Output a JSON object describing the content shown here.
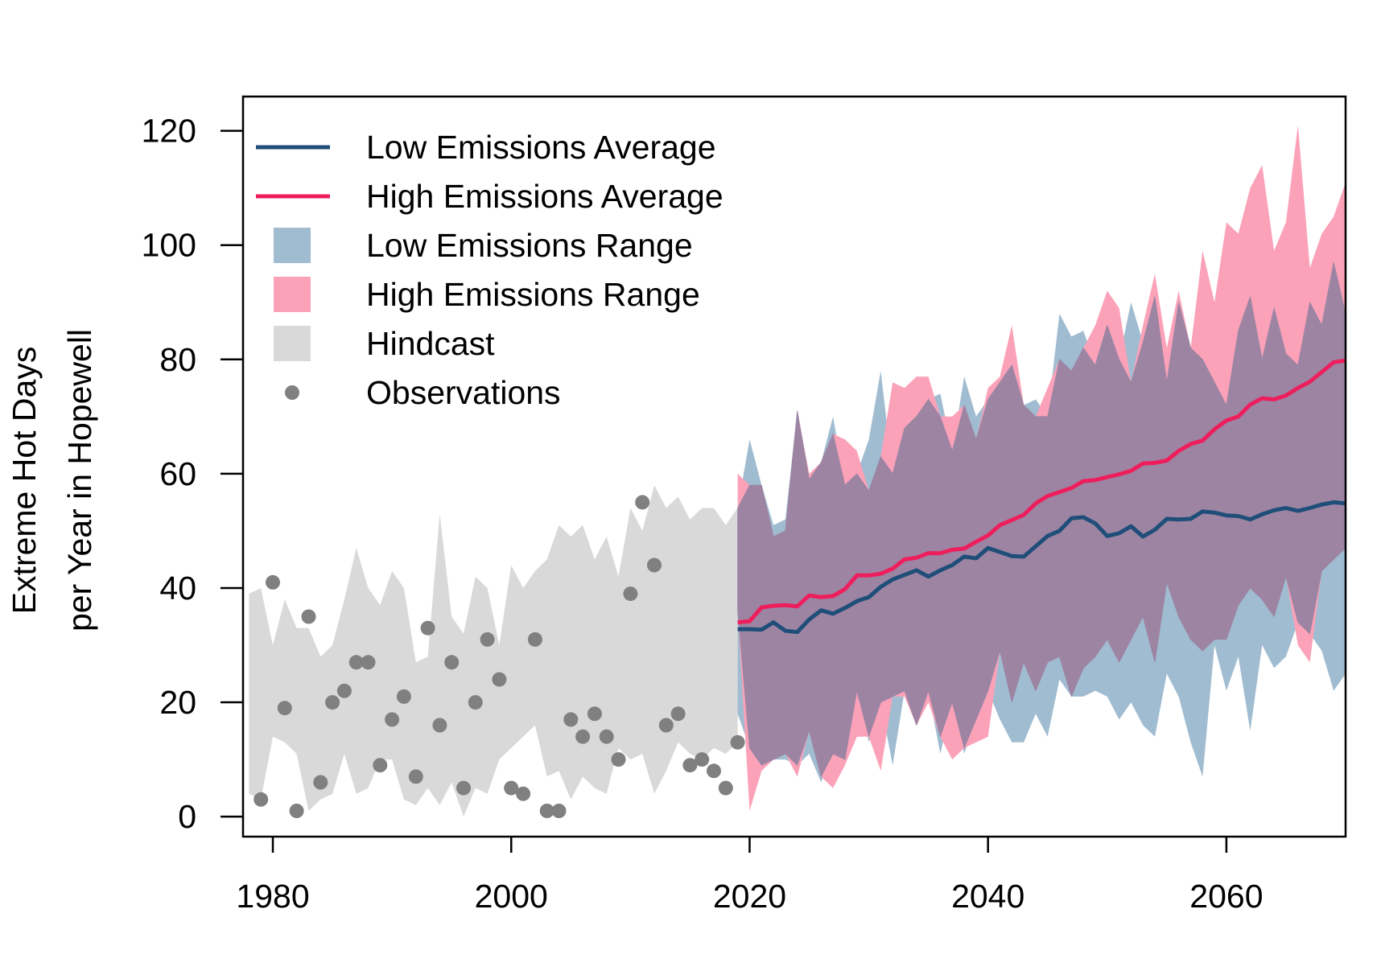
{
  "chart_data": {
    "type": "line",
    "title": "",
    "xlabel": "",
    "ylabel": [
      "Extreme Hot Days",
      "per Year in Hopewell"
    ],
    "xlim": [
      1977.5,
      2070
    ],
    "ylim": [
      -3.5,
      126
    ],
    "x_ticks": [
      "1980",
      "2000",
      "2020",
      "2040",
      "2060"
    ],
    "y_ticks": [
      "0",
      "20",
      "40",
      "60",
      "80",
      "100",
      "120"
    ],
    "grid": false,
    "legend_position": "top-left",
    "colors": {
      "low_line": "#1f4e79",
      "high_line": "#ee1e5c",
      "low_band": "#a0bcd1",
      "high_band": "#fba2b9",
      "overlap_band": "#9d84a3",
      "hindcast": "#d9d9d9",
      "observations": "#808080"
    },
    "legend": [
      {
        "key": "low_avg",
        "label": "Low Emissions Average",
        "kind": "line",
        "color": "#1f4e79"
      },
      {
        "key": "high_avg",
        "label": "High Emissions Average",
        "kind": "line",
        "color": "#ee1e5c"
      },
      {
        "key": "low_range",
        "label": "Low Emissions Range",
        "kind": "box",
        "color": "#a0bcd1"
      },
      {
        "key": "high_range",
        "label": "High Emissions Range",
        "kind": "box",
        "color": "#fba2b9"
      },
      {
        "key": "hindcast",
        "label": "Hindcast",
        "kind": "box",
        "color": "#d9d9d9"
      },
      {
        "key": "observations",
        "label": "Observations",
        "kind": "point",
        "color": "#808080"
      }
    ],
    "series": [
      {
        "name": "Hindcast",
        "kind": "band",
        "x": [
          1978,
          1979,
          1980,
          1981,
          1982,
          1983,
          1984,
          1985,
          1986,
          1987,
          1988,
          1989,
          1990,
          1991,
          1992,
          1993,
          1994,
          1995,
          1996,
          1997,
          1998,
          1999,
          2000,
          2001,
          2002,
          2003,
          2004,
          2005,
          2006,
          2007,
          2008,
          2009,
          2010,
          2011,
          2012,
          2013,
          2014,
          2015,
          2016,
          2017,
          2018,
          2019
        ],
        "upper": [
          39,
          40,
          30,
          38,
          33,
          33,
          28,
          30,
          38,
          47,
          40,
          37,
          43,
          40,
          27,
          28,
          53,
          35,
          32,
          42,
          40,
          30,
          44,
          40,
          43,
          45,
          51,
          49,
          51,
          45,
          49,
          42,
          54,
          50,
          58,
          54,
          56,
          52,
          54,
          54,
          51,
          54
        ],
        "lower": [
          4,
          3,
          14,
          13,
          11,
          1,
          3,
          4,
          11,
          4,
          5,
          10,
          10,
          3,
          2,
          5,
          2,
          6,
          0,
          5,
          4,
          10,
          12,
          14,
          16,
          7,
          8,
          3,
          7,
          5,
          4,
          12,
          10,
          11,
          4,
          8,
          13,
          11,
          10,
          12,
          11,
          13
        ]
      },
      {
        "name": "Low Emissions Range",
        "kind": "band",
        "x": [
          2019,
          2020,
          2021,
          2022,
          2023,
          2024,
          2025,
          2026,
          2027,
          2028,
          2029,
          2030,
          2031,
          2032,
          2033,
          2034,
          2035,
          2036,
          2037,
          2038,
          2039,
          2040,
          2041,
          2042,
          2043,
          2044,
          2045,
          2046,
          2047,
          2048,
          2049,
          2050,
          2051,
          2052,
          2053,
          2054,
          2055,
          2056,
          2057,
          2058,
          2059,
          2060,
          2061,
          2062,
          2063,
          2064,
          2065,
          2066,
          2067,
          2068,
          2069,
          2070
        ],
        "upper": [
          54,
          66,
          58,
          51,
          52,
          71,
          59,
          62,
          70,
          58,
          60,
          66,
          78,
          60,
          68,
          70,
          73,
          74,
          64,
          77,
          70,
          73,
          76,
          79,
          72,
          73,
          70,
          88,
          84,
          85,
          79,
          86,
          80,
          90,
          83,
          91,
          76,
          90,
          82,
          80,
          76,
          72,
          85,
          91,
          80,
          89,
          81,
          79,
          90,
          86,
          97,
          88
        ],
        "lower": [
          18,
          12,
          9,
          10,
          10,
          9,
          11,
          6,
          11,
          10,
          22,
          13,
          20,
          9,
          22,
          16,
          22,
          11,
          20,
          11,
          17,
          22,
          17,
          13,
          13,
          18,
          14,
          24,
          21,
          21,
          22,
          21,
          17,
          20,
          16,
          14,
          25,
          21,
          13,
          7,
          30,
          22,
          28,
          15,
          30,
          26,
          28,
          34,
          32,
          29,
          22,
          25
        ]
      },
      {
        "name": "High Emissions Range",
        "kind": "band",
        "x": [
          2019,
          2020,
          2021,
          2022,
          2023,
          2024,
          2025,
          2026,
          2027,
          2028,
          2029,
          2030,
          2031,
          2032,
          2033,
          2034,
          2035,
          2036,
          2037,
          2038,
          2039,
          2040,
          2041,
          2042,
          2043,
          2044,
          2045,
          2046,
          2047,
          2048,
          2049,
          2050,
          2051,
          2052,
          2053,
          2054,
          2055,
          2056,
          2057,
          2058,
          2059,
          2060,
          2061,
          2062,
          2063,
          2064,
          2065,
          2066,
          2067,
          2068,
          2069,
          2070
        ],
        "upper": [
          60,
          58,
          58,
          49,
          50,
          71,
          60,
          62,
          67,
          66,
          64,
          57,
          63,
          76,
          75,
          77,
          77,
          70,
          70,
          72,
          66,
          75,
          77,
          86,
          72,
          70,
          75,
          80,
          78,
          82,
          86,
          92,
          89,
          76,
          86,
          95,
          82,
          92,
          82,
          99,
          90,
          104,
          102,
          110,
          114,
          99,
          104,
          121,
          96,
          102,
          105,
          111
        ],
        "lower": [
          36,
          1,
          8,
          10,
          11,
          7,
          15,
          7,
          5,
          9,
          14,
          14,
          8,
          21,
          21,
          16,
          20,
          14,
          10,
          12,
          13,
          14,
          29,
          20,
          27,
          22,
          27,
          28,
          21,
          26,
          28,
          31,
          27,
          31,
          35,
          27,
          41,
          35,
          31,
          29,
          31,
          31,
          37,
          40,
          38,
          35,
          42,
          30,
          27,
          43,
          45,
          47
        ]
      },
      {
        "name": "Low Emissions Average",
        "kind": "line",
        "x": [
          2019,
          2020,
          2021,
          2022,
          2023,
          2024,
          2025,
          2026,
          2027,
          2028,
          2029,
          2030,
          2031,
          2032,
          2033,
          2034,
          2035,
          2036,
          2037,
          2038,
          2039,
          2040,
          2041,
          2042,
          2043,
          2044,
          2045,
          2046,
          2047,
          2048,
          2049,
          2050,
          2051,
          2052,
          2053,
          2054,
          2055,
          2056,
          2057,
          2058,
          2059,
          2060,
          2061,
          2062,
          2063,
          2064,
          2065,
          2066,
          2067,
          2068,
          2069,
          2070
        ],
        "values": [
          32.8,
          32.8,
          32.7,
          34.0,
          32.5,
          32.3,
          34.5,
          36.1,
          35.5,
          36.5,
          37.7,
          38.4,
          40.2,
          41.5,
          42.3,
          43.1,
          42.0,
          43.1,
          44.0,
          45.5,
          45.2,
          47.0,
          46.3,
          45.6,
          45.5,
          47.3,
          49.1,
          50.0,
          52.2,
          52.4,
          51.3,
          49.1,
          49.6,
          50.8,
          49.0,
          50.2,
          52.1,
          52.0,
          52.1,
          53.4,
          53.2,
          52.7,
          52.6,
          52.0,
          52.9,
          53.6,
          54.0,
          53.5,
          54.0,
          54.6,
          55.0,
          54.8
        ]
      },
      {
        "name": "High Emissions Average",
        "kind": "line",
        "x": [
          2019,
          2020,
          2021,
          2022,
          2023,
          2024,
          2025,
          2026,
          2027,
          2028,
          2029,
          2030,
          2031,
          2032,
          2033,
          2034,
          2035,
          2036,
          2037,
          2038,
          2039,
          2040,
          2041,
          2042,
          2043,
          2044,
          2045,
          2046,
          2047,
          2048,
          2049,
          2050,
          2051,
          2052,
          2053,
          2054,
          2055,
          2056,
          2057,
          2058,
          2059,
          2060,
          2061,
          2062,
          2063,
          2064,
          2065,
          2066,
          2067,
          2068,
          2069,
          2070
        ],
        "values": [
          34.0,
          34.2,
          36.6,
          36.9,
          37.0,
          36.8,
          38.7,
          38.4,
          38.6,
          39.8,
          42.2,
          42.2,
          42.5,
          43.4,
          45.0,
          45.3,
          46.1,
          46.1,
          46.7,
          46.9,
          48.1,
          49.2,
          51.0,
          51.9,
          52.8,
          54.8,
          56.1,
          56.8,
          57.5,
          58.7,
          58.9,
          59.4,
          59.9,
          60.5,
          61.8,
          61.9,
          62.3,
          64.0,
          65.2,
          65.8,
          67.8,
          69.3,
          70.0,
          72.1,
          73.2,
          73.0,
          73.7,
          75.0,
          76.1,
          77.8,
          79.5,
          79.8
        ]
      },
      {
        "name": "Observations",
        "kind": "scatter",
        "x": [
          1979,
          1980,
          1981,
          1982,
          1983,
          1984,
          1985,
          1986,
          1987,
          1988,
          1989,
          1990,
          1991,
          1992,
          1993,
          1994,
          1995,
          1996,
          1997,
          1998,
          1999,
          2000,
          2001,
          2002,
          2003,
          2004,
          2005,
          2006,
          2007,
          2008,
          2009,
          2010,
          2011,
          2012,
          2013,
          2014,
          2015,
          2016,
          2017,
          2018,
          2019
        ],
        "values": [
          3,
          41,
          19,
          1,
          35,
          6,
          20,
          22,
          27,
          27,
          9,
          17,
          21,
          7,
          33,
          16,
          27,
          5,
          20,
          31,
          24,
          5,
          4,
          31,
          1,
          1,
          17,
          14,
          18,
          14,
          10,
          39,
          55,
          44,
          16,
          18,
          9,
          10,
          8,
          5,
          13
        ]
      }
    ]
  }
}
